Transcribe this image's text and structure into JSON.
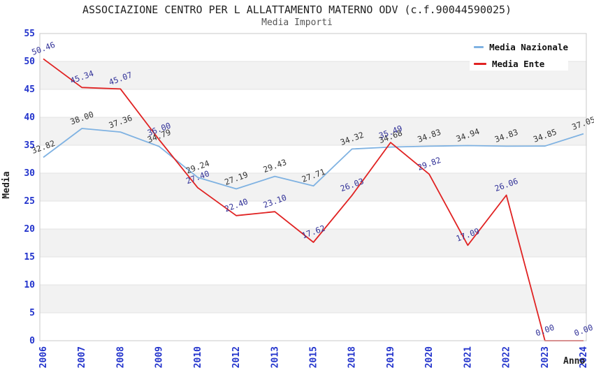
{
  "colors": {
    "background": "#ffffff",
    "band": "#f2f2f2",
    "grid": "#e3e3e3",
    "border": "#c8c8c8",
    "tick_label": "#2233cc",
    "title": "#222222",
    "subtitle": "#555555",
    "axis_label": "#222222"
  },
  "chart_data": {
    "type": "line",
    "title": "ASSOCIAZIONE CENTRO PER L ALLATTAMENTO MATERNO ODV (c.f.90044590025)",
    "subtitle": "Media Importi",
    "xlabel": "Anno",
    "ylabel": "Media",
    "x": [
      2006,
      2007,
      2008,
      2009,
      2010,
      2012,
      2013,
      2015,
      2018,
      2019,
      2020,
      2021,
      2022,
      2023,
      2024
    ],
    "series": [
      {
        "name": "Media Nazionale",
        "color": "#7fb2e2",
        "label_color": "#333333",
        "values": [
          32.82,
          38.0,
          37.36,
          34.79,
          29.24,
          27.19,
          29.43,
          27.71,
          34.32,
          34.68,
          34.83,
          34.94,
          34.83,
          34.85,
          37.05
        ]
      },
      {
        "name": "Media Ente",
        "color": "#e02222",
        "label_color": "#333399",
        "values": [
          50.46,
          45.34,
          45.07,
          36.0,
          27.4,
          22.4,
          23.1,
          17.62,
          26.03,
          35.49,
          29.82,
          17.09,
          26.06,
          0.0,
          0.0
        ]
      }
    ],
    "ylim": [
      0,
      55
    ],
    "ytick_step": 5,
    "yticks": [
      0,
      5,
      10,
      15,
      20,
      25,
      30,
      35,
      40,
      45,
      50,
      55
    ],
    "legend_position": "top-right",
    "grid": "horizontal",
    "data_labels": true,
    "data_label_format": "0.00"
  }
}
